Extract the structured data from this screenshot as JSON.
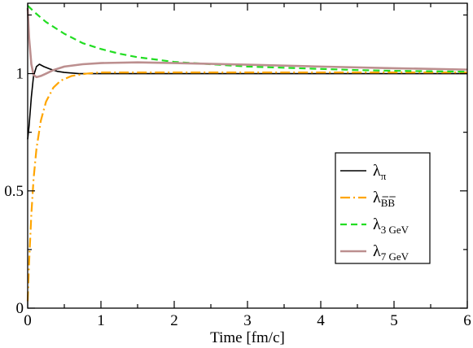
{
  "chart_data": {
    "type": "line",
    "title": "",
    "xlabel": "Time [fm/c]",
    "ylabel": "",
    "xlim": [
      0,
      6
    ],
    "ylim": [
      0,
      1.3
    ],
    "grid": false,
    "legend_position": "center-right",
    "x_ticks": [
      0,
      1,
      2,
      3,
      4,
      5,
      6
    ],
    "y_ticks": [
      0,
      0.5,
      1
    ],
    "x_tick_labels": [
      "0",
      "1",
      "2",
      "3",
      "4",
      "5",
      "6"
    ],
    "y_tick_labels": [
      "0",
      "0.5",
      "1"
    ],
    "series": [
      {
        "key": "pi",
        "legend_main": "λ",
        "legend_sub": "π",
        "color": "#000000",
        "dash": "",
        "width": 1.6,
        "points": [
          [
            0,
            0.72
          ],
          [
            0.02,
            0.78
          ],
          [
            0.05,
            0.9
          ],
          [
            0.08,
            0.99
          ],
          [
            0.12,
            1.03
          ],
          [
            0.16,
            1.04
          ],
          [
            0.22,
            1.03
          ],
          [
            0.3,
            1.02
          ],
          [
            0.4,
            1.01
          ],
          [
            0.5,
            1.005
          ],
          [
            0.7,
            1.0
          ],
          [
            1.0,
            1.0
          ],
          [
            2,
            1.0
          ],
          [
            3,
            1.0
          ],
          [
            4,
            1.0
          ],
          [
            5,
            1.0
          ],
          [
            6,
            1.0
          ]
        ]
      },
      {
        "key": "bb",
        "legend_main": "λ",
        "legend_sub": "BB",
        "legend_sub_overline": true,
        "color": "#ffa500",
        "dash": "12,4,2,4",
        "width": 2.2,
        "points": [
          [
            0,
            0.03
          ],
          [
            0.02,
            0.2
          ],
          [
            0.05,
            0.4
          ],
          [
            0.08,
            0.55
          ],
          [
            0.12,
            0.68
          ],
          [
            0.18,
            0.8
          ],
          [
            0.25,
            0.88
          ],
          [
            0.35,
            0.94
          ],
          [
            0.45,
            0.97
          ],
          [
            0.6,
            0.99
          ],
          [
            0.8,
            1.0
          ],
          [
            1.0,
            1.005
          ],
          [
            1.5,
            1.005
          ],
          [
            2,
            1.005
          ],
          [
            3,
            1.005
          ],
          [
            4,
            1.005
          ],
          [
            5,
            1.005
          ],
          [
            6,
            1.005
          ]
        ]
      },
      {
        "key": "g3",
        "legend_main": "λ",
        "legend_sub": "3 GeV",
        "color": "#22dd22",
        "dash": "8,5",
        "width": 2.2,
        "points": [
          [
            0,
            1.29
          ],
          [
            0.1,
            1.26
          ],
          [
            0.25,
            1.22
          ],
          [
            0.5,
            1.17
          ],
          [
            0.75,
            1.13
          ],
          [
            1.0,
            1.105
          ],
          [
            1.25,
            1.085
          ],
          [
            1.5,
            1.07
          ],
          [
            2.0,
            1.05
          ],
          [
            2.5,
            1.04
          ],
          [
            3.0,
            1.03
          ],
          [
            3.5,
            1.025
          ],
          [
            4.0,
            1.02
          ],
          [
            4.5,
            1.015
          ],
          [
            5.0,
            1.012
          ],
          [
            5.5,
            1.01
          ],
          [
            6.0,
            1.008
          ]
        ]
      },
      {
        "key": "g7",
        "legend_main": "λ",
        "legend_sub": "7 GeV",
        "color": "#bc8f8f",
        "dash": "",
        "width": 2.6,
        "points": [
          [
            0,
            1.28
          ],
          [
            0.02,
            1.15
          ],
          [
            0.05,
            1.04
          ],
          [
            0.08,
            0.995
          ],
          [
            0.12,
            0.985
          ],
          [
            0.18,
            0.99
          ],
          [
            0.25,
            1.0
          ],
          [
            0.35,
            1.015
          ],
          [
            0.5,
            1.03
          ],
          [
            0.75,
            1.04
          ],
          [
            1.0,
            1.045
          ],
          [
            1.5,
            1.048
          ],
          [
            2.0,
            1.045
          ],
          [
            3.0,
            1.038
          ],
          [
            4.0,
            1.03
          ],
          [
            5.0,
            1.023
          ],
          [
            6.0,
            1.017
          ]
        ]
      }
    ]
  }
}
